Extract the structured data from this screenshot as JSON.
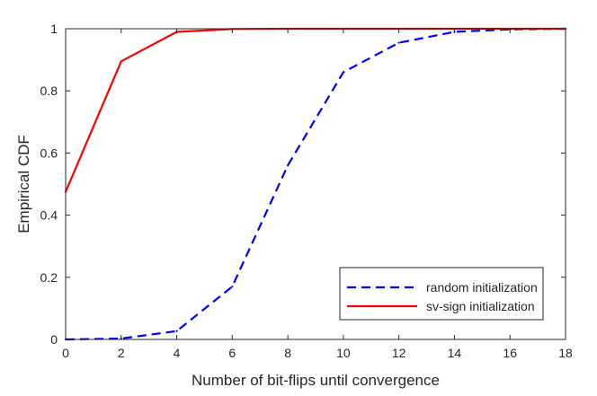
{
  "chart_data": {
    "type": "line",
    "title": "",
    "xlabel": "Number of bit-flips until convergence",
    "ylabel": "Empirical CDF",
    "xlim": [
      0,
      18
    ],
    "ylim": [
      0,
      1
    ],
    "xticks": [
      0,
      2,
      4,
      6,
      8,
      10,
      12,
      14,
      16,
      18
    ],
    "yticks": [
      0,
      0.2,
      0.4,
      0.6,
      0.8,
      1
    ],
    "grid": false,
    "legend_position": "bottom-right",
    "series": [
      {
        "name": "random initialization",
        "color": "#0000ff",
        "line_style": "dashed",
        "x": [
          0,
          2,
          4,
          6,
          8,
          10,
          12,
          14,
          16,
          18
        ],
        "y": [
          0,
          0.003,
          0.027,
          0.17,
          0.56,
          0.86,
          0.955,
          0.99,
          0.998,
          1
        ]
      },
      {
        "name": "sv-sign initialization",
        "color": "#ff0000",
        "line_style": "solid",
        "x": [
          0,
          2,
          4,
          6,
          8,
          10,
          12,
          14,
          16,
          18
        ],
        "y": [
          0.475,
          0.895,
          0.99,
          0.999,
          1,
          1,
          1,
          1,
          1,
          1
        ]
      }
    ]
  }
}
